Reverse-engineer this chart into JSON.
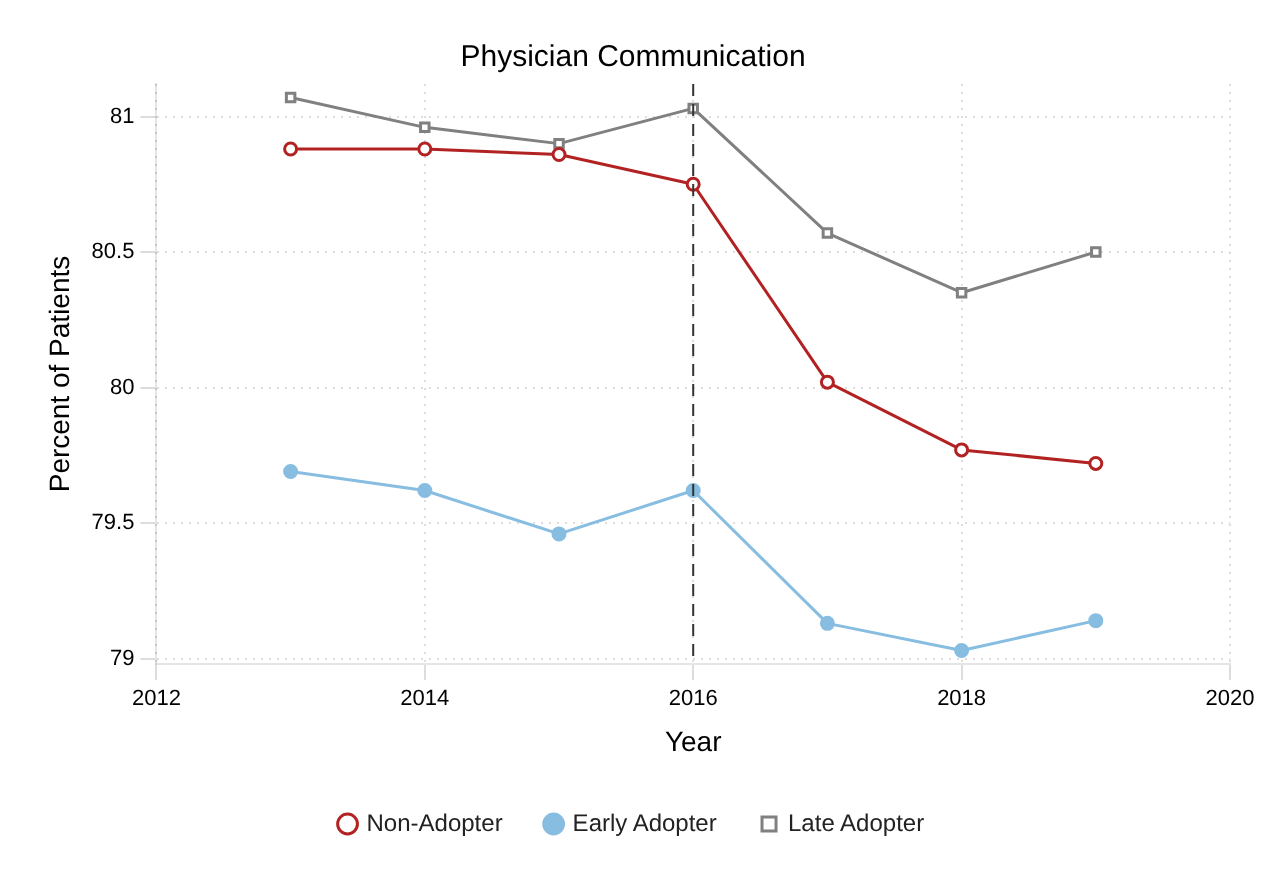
{
  "chart_data": {
    "type": "line",
    "title": "Physician Communication",
    "xlabel": "Year",
    "ylabel": "Percent of Patients",
    "x": [
      2013,
      2014,
      2015,
      2016,
      2017,
      2018,
      2019
    ],
    "series": [
      {
        "name": "Non-Adopter",
        "color": "#b22222",
        "marker": "circle",
        "values": [
          80.88,
          80.88,
          80.86,
          80.75,
          80.02,
          79.77,
          79.72
        ]
      },
      {
        "name": "Early Adopter",
        "color": "#87bde0",
        "marker": "circle",
        "values": [
          79.69,
          79.62,
          79.46,
          79.62,
          79.13,
          79.03,
          79.14
        ]
      },
      {
        "name": "Late Adopter",
        "color": "#808080",
        "marker": "square",
        "values": [
          81.07,
          80.96,
          80.9,
          81.03,
          80.57,
          80.35,
          80.5
        ]
      }
    ],
    "xlim": [
      2012,
      2020
    ],
    "xticks": [
      2012,
      2014,
      2016,
      2018,
      2020
    ],
    "ylim": [
      78.98,
      81.12
    ],
    "yticks": [
      79,
      79.5,
      80,
      80.5,
      81
    ],
    "ref_lines": [
      {
        "axis": "x",
        "value": 2016,
        "color": "#333333",
        "line_style": "dashed"
      }
    ],
    "grid": true,
    "legend": "bottom",
    "line_style": "solid"
  }
}
